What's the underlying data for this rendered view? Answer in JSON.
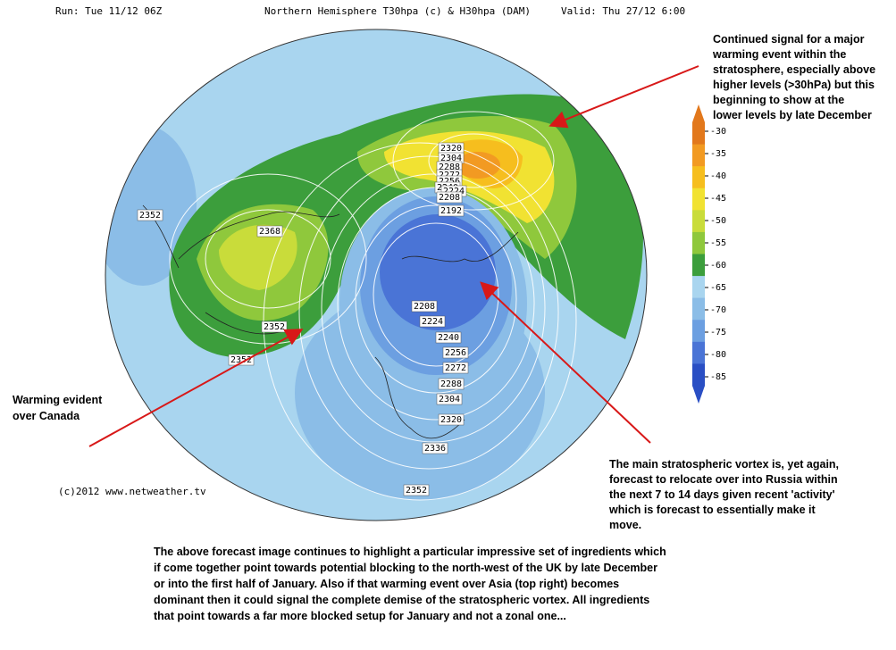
{
  "header": {
    "run": "Run: Tue 11/12 06Z",
    "title": "Northern Hemisphere T30hpa (c) & H30hpa (DAM)",
    "valid": "Valid: Thu 27/12 6:00"
  },
  "map": {
    "contour_labels": [
      "2320",
      "2304",
      "2288",
      "2272",
      "2256",
      "2240",
      "2224",
      "2208",
      "2192",
      "2352",
      "2368",
      "2352",
      "2352",
      "2208",
      "2224",
      "2240",
      "2256",
      "2272",
      "2288",
      "2304",
      "2320",
      "2336",
      "2352"
    ],
    "copyright": "(c)2012  www.netweather.tv"
  },
  "colorbar": {
    "ticks": [
      -30,
      -35,
      -40,
      -45,
      -50,
      -55,
      -60,
      -65,
      -70,
      -75,
      -80,
      -85
    ],
    "colors": [
      "#e2781c",
      "#f29a22",
      "#f6be1e",
      "#f1e232",
      "#c9dc3a",
      "#8fc83c",
      "#3c9e3c",
      "#a9d5ef",
      "#8bbde7",
      "#6c9fe1",
      "#4a74d6",
      "#2a4fc4"
    ]
  },
  "annotations": {
    "warming_signal": [
      "Continued signal for a major",
      "warming event within the",
      "stratosphere, especially above",
      "higher levels (>30hPa) but this",
      "beginning to show at the",
      "lower levels by late December"
    ],
    "canada": [
      "Warming evident",
      "over Canada"
    ],
    "vortex": [
      "The main stratospheric vortex is, yet again,",
      "forecast to relocate over into Russia within",
      "the next 7 to 14 days given recent 'activity'",
      "which is forecast to essentially make it",
      "move."
    ],
    "summary": [
      "The above forecast image continues to highlight a particular impressive set of ingredients which",
      "if come together point towards potential blocking to the north-west of the UK by late December",
      "or into the first half of January.  Also if that warming event over Asia (top right) becomes",
      "dominant then it could signal the complete demise of the stratospheric vortex.  All ingredients",
      "that point towards a far more blocked setup for January and not a zonal one..."
    ]
  }
}
